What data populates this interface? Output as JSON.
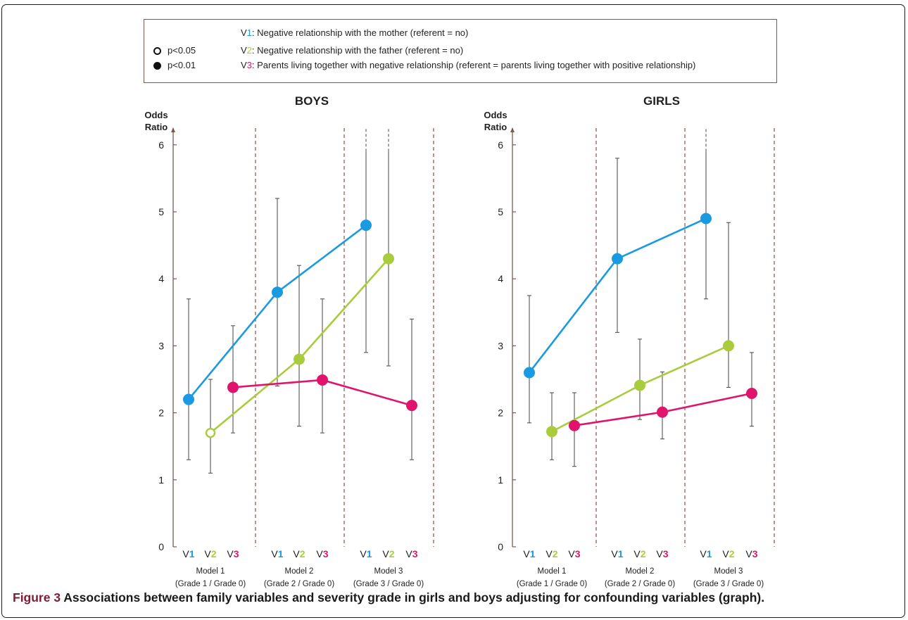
{
  "legend": {
    "significance": [
      {
        "label": "p<0.05",
        "marker": "open-circle"
      },
      {
        "label": "p<0.01",
        "marker": "filled-circle"
      }
    ],
    "variables": [
      {
        "prefix": "V",
        "num": "1",
        "num_color": "#1a9ae0",
        "text": ": Negative relationship with the mother (referent = no)"
      },
      {
        "prefix": "V",
        "num": "2",
        "num_color": "#a8cc3c",
        "text": ": Negative relationship with the father (referent = no)"
      },
      {
        "prefix": "V",
        "num": "3",
        "num_color": "#e0146c",
        "text": ": Parents living together with negative relationship (referent = parents living together with positive relationship)"
      }
    ]
  },
  "caption": {
    "label": "Figure 3",
    "text": " Associations between family variables and severity grade in girls and boys adjusting for confounding variables (graph)."
  },
  "colors": {
    "V1": "#1a9ae0",
    "V2": "#a8cc3c",
    "V3": "#e0146c",
    "axis": "#7a5a50",
    "divider": "#8b3a3a",
    "whisker": "#444444"
  },
  "chart_data": [
    {
      "type": "line",
      "title": "BOYS",
      "ylabel": "Odds Ratio",
      "ylim": [
        0,
        6
      ],
      "yticks": [
        0,
        1,
        2,
        3,
        4,
        5,
        6
      ],
      "groups": [
        {
          "label_line1": "Model 1",
          "label_line2": "(Grade 1 / Grade 0)"
        },
        {
          "label_line1": "Model 2",
          "label_line2": "(Grade 2 / Grade 0)"
        },
        {
          "label_line1": "Model 3",
          "label_line2": "(Grade 3 / Grade 0)"
        }
      ],
      "series": [
        {
          "name": "V1",
          "points": [
            {
              "model": 1,
              "value": 2.2,
              "ci": [
                1.3,
                3.7
              ],
              "sig": "p<0.01",
              "ci_open_top": false
            },
            {
              "model": 2,
              "value": 3.8,
              "ci": [
                2.4,
                5.2
              ],
              "sig": "p<0.01",
              "ci_open_top": false
            },
            {
              "model": 3,
              "value": 4.8,
              "ci": [
                2.9,
                5.9
              ],
              "sig": "p<0.01",
              "ci_open_top": true
            }
          ]
        },
        {
          "name": "V2",
          "points": [
            {
              "model": 1,
              "value": 1.7,
              "ci": [
                1.1,
                2.5
              ],
              "sig": "p<0.05",
              "ci_open_top": false
            },
            {
              "model": 2,
              "value": 2.8,
              "ci": [
                1.8,
                4.2
              ],
              "sig": "p<0.01",
              "ci_open_top": false
            },
            {
              "model": 3,
              "value": 4.3,
              "ci": [
                2.7,
                5.9
              ],
              "sig": "p<0.01",
              "ci_open_top": true
            }
          ]
        },
        {
          "name": "V3",
          "points": [
            {
              "model": 1,
              "value": 2.38,
              "ci": [
                1.7,
                3.3
              ],
              "sig": "p<0.01",
              "ci_open_top": false
            },
            {
              "model": 2,
              "value": 2.49,
              "ci": [
                1.7,
                3.7
              ],
              "sig": "p<0.01",
              "ci_open_top": false
            },
            {
              "model": 3,
              "value": 2.11,
              "ci": [
                1.3,
                3.4
              ],
              "sig": "p<0.01",
              "ci_open_top": false
            }
          ]
        }
      ]
    },
    {
      "type": "line",
      "title": "GIRLS",
      "ylabel": "Odds Ratio",
      "ylim": [
        0,
        6
      ],
      "yticks": [
        0,
        1,
        2,
        3,
        4,
        5,
        6
      ],
      "groups": [
        {
          "label_line1": "Model 1",
          "label_line2": "(Grade 1 / Grade 0)"
        },
        {
          "label_line1": "Model 2",
          "label_line2": "(Grade 2 / Grade 0)"
        },
        {
          "label_line1": "Model 3",
          "label_line2": "(Grade 3 / Grade 0)"
        }
      ],
      "series": [
        {
          "name": "V1",
          "points": [
            {
              "model": 1,
              "value": 2.6,
              "ci": [
                1.85,
                3.75
              ],
              "sig": "p<0.01",
              "ci_open_top": false
            },
            {
              "model": 2,
              "value": 4.3,
              "ci": [
                3.2,
                5.8
              ],
              "sig": "p<0.01",
              "ci_open_top": false
            },
            {
              "model": 3,
              "value": 4.9,
              "ci": [
                3.7,
                5.9
              ],
              "sig": "p<0.01",
              "ci_open_top": true
            }
          ]
        },
        {
          "name": "V2",
          "points": [
            {
              "model": 1,
              "value": 1.72,
              "ci": [
                1.3,
                2.3
              ],
              "sig": "p<0.01",
              "ci_open_top": false
            },
            {
              "model": 2,
              "value": 2.41,
              "ci": [
                1.9,
                3.1
              ],
              "sig": "p<0.01",
              "ci_open_top": false
            },
            {
              "model": 3,
              "value": 3.0,
              "ci": [
                2.38,
                4.84
              ],
              "sig": "p<0.01",
              "ci_open_top": false
            }
          ]
        },
        {
          "name": "V3",
          "points": [
            {
              "model": 1,
              "value": 1.81,
              "ci": [
                1.2,
                2.3
              ],
              "sig": "p<0.01",
              "ci_open_top": false
            },
            {
              "model": 2,
              "value": 2.01,
              "ci": [
                1.61,
                2.61
              ],
              "sig": "p<0.01",
              "ci_open_top": false
            },
            {
              "model": 3,
              "value": 2.29,
              "ci": [
                1.8,
                2.9
              ],
              "sig": "p<0.01",
              "ci_open_top": false
            }
          ]
        }
      ]
    }
  ]
}
